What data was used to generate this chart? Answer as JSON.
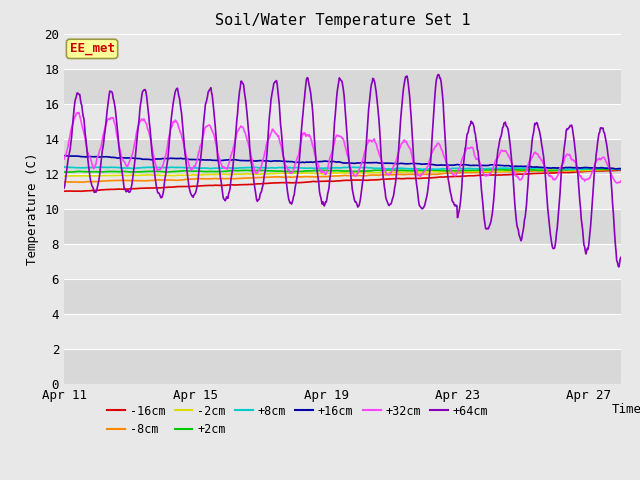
{
  "title": "Soil/Water Temperature Set 1",
  "xlabel": "Time",
  "ylabel": "Temperature (C)",
  "annotation": "EE_met",
  "ylim": [
    0,
    20
  ],
  "xlim": [
    0,
    17
  ],
  "x_tick_labels": [
    "Apr 11",
    "Apr 15",
    "Apr 19",
    "Apr 23",
    "Apr 27"
  ],
  "x_tick_positions": [
    0,
    4,
    8,
    12,
    16
  ],
  "bg_color": "#e8e8e8",
  "band_colors": [
    "#d8d8d8",
    "#e8e8e8"
  ],
  "legend_entries": [
    "-16cm",
    "-8cm",
    "-2cm",
    "+2cm",
    "+8cm",
    "+16cm",
    "+32cm",
    "+64cm"
  ],
  "legend_colors": [
    "#dd0000",
    "#ff8800",
    "#dddd00",
    "#00cc00",
    "#00cccc",
    "#0000aa",
    "#ff44ff",
    "#8800bb"
  ]
}
